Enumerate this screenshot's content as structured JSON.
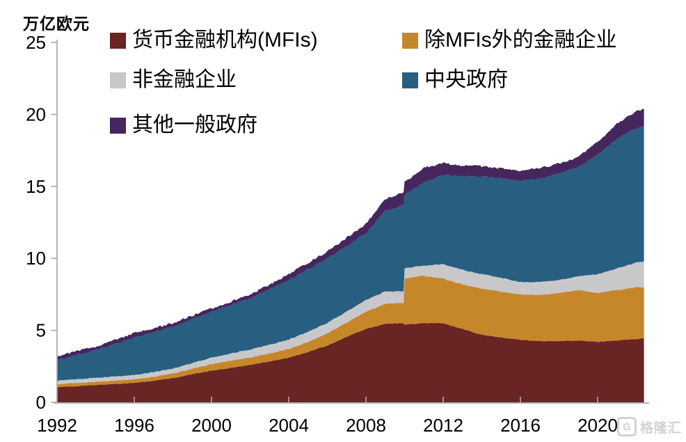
{
  "chart_data": {
    "type": "area",
    "stacked": true,
    "unit_label": "万亿欧元",
    "xlabel": "",
    "ylabel": "万亿欧元",
    "ylim": [
      0,
      25
    ],
    "xlim": [
      1992,
      2022.4
    ],
    "y_ticks": [
      0,
      5,
      10,
      15,
      20,
      25
    ],
    "x_ticks": [
      1992,
      1996,
      2000,
      2004,
      2008,
      2012,
      2016,
      2020
    ],
    "grid": false,
    "legend_position": "top-left",
    "axis_color": "#a8a8a8",
    "x": [
      1992,
      1993,
      1994,
      1995,
      1996,
      1997,
      1998,
      1999,
      2000,
      2001,
      2002,
      2003,
      2004,
      2005,
      2006,
      2007,
      2008,
      2009,
      2009.95,
      2010,
      2011,
      2012,
      2013,
      2014,
      2015,
      2016,
      2017,
      2018,
      2019,
      2020,
      2021,
      2022,
      2022.4
    ],
    "series": [
      {
        "name": "货币金融机构(MFIs)",
        "color": "#682523",
        "values": [
          1.05,
          1.12,
          1.2,
          1.28,
          1.35,
          1.5,
          1.68,
          1.95,
          2.2,
          2.4,
          2.6,
          2.85,
          3.1,
          3.5,
          3.95,
          4.55,
          5.1,
          5.45,
          5.5,
          5.4,
          5.5,
          5.5,
          5.1,
          4.7,
          4.5,
          4.35,
          4.25,
          4.25,
          4.3,
          4.2,
          4.3,
          4.4,
          4.45
        ]
      },
      {
        "name": "除MFIs外的金融企业",
        "color": "#c6872b",
        "values": [
          0.2,
          0.22,
          0.23,
          0.24,
          0.25,
          0.28,
          0.32,
          0.38,
          0.45,
          0.5,
          0.52,
          0.55,
          0.6,
          0.7,
          0.85,
          1.0,
          1.2,
          1.4,
          1.4,
          3.2,
          3.3,
          3.1,
          3.1,
          3.2,
          3.2,
          3.15,
          3.2,
          3.35,
          3.5,
          3.4,
          3.5,
          3.6,
          3.55
        ]
      },
      {
        "name": "非金融企业",
        "color": "#c8c8ca",
        "values": [
          0.25,
          0.26,
          0.27,
          0.28,
          0.3,
          0.32,
          0.35,
          0.4,
          0.45,
          0.5,
          0.55,
          0.6,
          0.65,
          0.7,
          0.72,
          0.75,
          0.8,
          0.85,
          0.8,
          0.7,
          0.7,
          1.0,
          1.0,
          1.0,
          0.95,
          0.85,
          0.9,
          0.9,
          0.95,
          1.3,
          1.5,
          1.7,
          1.8
        ]
      },
      {
        "name": "中央政府",
        "color": "#285e80",
        "values": [
          1.45,
          1.68,
          1.9,
          2.25,
          2.6,
          2.75,
          2.9,
          3.05,
          3.2,
          3.35,
          3.55,
          3.85,
          4.15,
          4.35,
          4.45,
          4.55,
          4.65,
          5.6,
          6.0,
          5.1,
          5.8,
          6.2,
          6.5,
          6.8,
          6.9,
          7.05,
          7.2,
          7.4,
          7.55,
          8.3,
          9.0,
          9.35,
          9.4
        ]
      },
      {
        "name": "其他一般政府",
        "color": "#45265d",
        "values": [
          0.25,
          0.27,
          0.28,
          0.29,
          0.3,
          0.28,
          0.26,
          0.24,
          0.22,
          0.25,
          0.28,
          0.33,
          0.4,
          0.45,
          0.5,
          0.58,
          0.65,
          0.8,
          0.9,
          0.9,
          1.0,
          0.8,
          0.75,
          0.7,
          0.7,
          0.7,
          0.7,
          0.7,
          0.75,
          0.9,
          1.05,
          1.15,
          1.2
        ]
      }
    ]
  },
  "watermark": {
    "logo_letter": "G",
    "text": "格隆汇"
  }
}
